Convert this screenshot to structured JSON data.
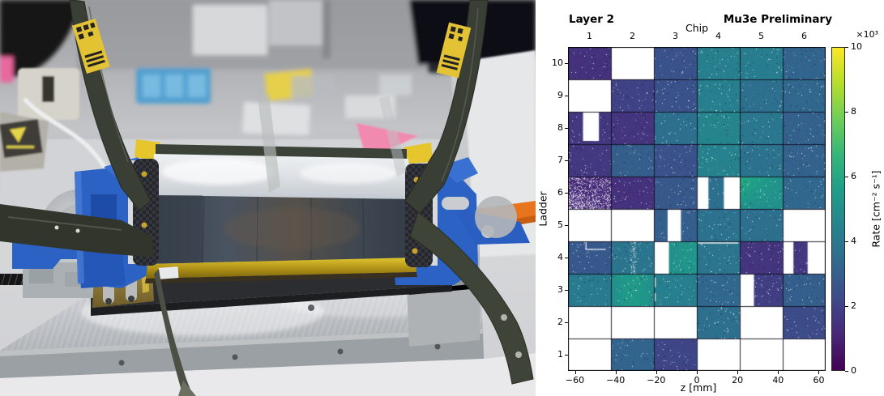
{
  "photo": {
    "alt": "Photograph of a Mu3e pixel-tracker ladder module (silver silicon faces with yellow kapton edges) clamped between blue 3D-printed holders on an aluminium assembly jig, with dark flex-print cables fanning out, in a lab",
    "colors": {
      "jig_blue": "#2c62c4",
      "kapton_yellow": "#d7b92a",
      "brass": "#a98f46",
      "aluminium": "#b9bcc0",
      "flex_olive": "#3a3f35",
      "label_yellow": "#e3c334",
      "sticky_pink": "#f289ae",
      "tool_orange": "#e8741e"
    }
  },
  "chart_data": {
    "type": "heatmap",
    "title_left": "Layer 2",
    "title_right": "Mu3e Preliminary",
    "x_top_label": "Chip",
    "x_top_ticks": [
      "1",
      "2",
      "3",
      "4",
      "5",
      "6"
    ],
    "x_bottom_label": "z [mm]",
    "x_bottom_ticks": [
      "−60",
      "−40",
      "−20",
      "0",
      "20",
      "40",
      "60"
    ],
    "x_bottom_tick_values": [
      -60,
      -40,
      -20,
      0,
      20,
      40,
      60
    ],
    "z_range_mm": [
      -63.4,
      63.4
    ],
    "y_label": "Ladder",
    "y_ticks": [
      "10",
      "9",
      "8",
      "7",
      "6",
      "5",
      "4",
      "3",
      "2",
      "1"
    ],
    "colorbar": {
      "label": "Rate [cm⁻² s⁻¹]",
      "scale": "×10³",
      "ticks": [
        0,
        2,
        4,
        6,
        8,
        10
      ],
      "colormap": "viridis",
      "range": [
        0,
        10
      ]
    },
    "value_unit": "10^3 cm^-2 s^-1",
    "ladders": [
      {
        "ladder": 10,
        "values": [
          1.3,
          null,
          2.3,
          3.9,
          3.8,
          2.9
        ]
      },
      {
        "ladder": 9,
        "values": [
          null,
          1.8,
          2.3,
          3.9,
          3.3,
          3.0
        ]
      },
      {
        "ladder": 8,
        "values": [
          1.5,
          1.4,
          3.3,
          4.1,
          3.6,
          2.8
        ]
      },
      {
        "ladder": 7,
        "values": [
          1.5,
          2.7,
          2.3,
          4.0,
          3.4,
          2.8
        ]
      },
      {
        "ladder": 6,
        "values": [
          1.1,
          1.3,
          2.5,
          3.3,
          4.5,
          3.0
        ]
      },
      {
        "ladder": 5,
        "values": [
          null,
          null,
          2.7,
          3.4,
          3.3,
          null
        ]
      },
      {
        "ladder": 4,
        "values": [
          2.5,
          3.5,
          4.3,
          3.5,
          1.4,
          1.5
        ]
      },
      {
        "ladder": 3,
        "values": [
          3.7,
          4.4,
          3.9,
          3.0,
          1.7,
          2.7
        ]
      },
      {
        "ladder": 2,
        "values": [
          null,
          null,
          null,
          3.3,
          null,
          2.1
        ]
      },
      {
        "ladder": 1,
        "values": [
          null,
          2.9,
          1.9,
          null,
          null,
          null
        ]
      }
    ],
    "white_patches": [
      {
        "ladder": 8,
        "chip": 1,
        "x0": 0.35,
        "x1": 0.72,
        "y0": 0.0,
        "y1": 0.9
      },
      {
        "ladder": 6,
        "chip": 4,
        "x0": 0.0,
        "x1": 0.27,
        "y0": 0.0,
        "y1": 1.0
      },
      {
        "ladder": 6,
        "chip": 4,
        "x0": 0.63,
        "x1": 1.0,
        "y0": 0.0,
        "y1": 1.0
      },
      {
        "ladder": 5,
        "chip": 3,
        "x0": 0.32,
        "x1": 0.63,
        "y0": 0.0,
        "y1": 1.0
      },
      {
        "ladder": 4,
        "chip": 3,
        "x0": 0.0,
        "x1": 0.35,
        "y0": 0.0,
        "y1": 1.0
      },
      {
        "ladder": 4,
        "chip": 6,
        "x0": 0.0,
        "x1": 0.25,
        "y0": 0.0,
        "y1": 1.0
      },
      {
        "ladder": 4,
        "chip": 6,
        "x0": 0.58,
        "x1": 1.0,
        "y0": 0.0,
        "y1": 1.0
      },
      {
        "ladder": 3,
        "chip": 5,
        "x0": 0.0,
        "x1": 0.33,
        "y0": 0.0,
        "y1": 1.0
      }
    ],
    "artifacts": [
      {
        "type": "noisy",
        "ladder": 6,
        "chip": 1
      },
      {
        "type": "smear",
        "ladder": 4,
        "chip": 2
      },
      {
        "type": "vline",
        "ladder": 4,
        "chip": 1,
        "x": 0.42,
        "y0": 0.03,
        "y1": 0.25
      },
      {
        "type": "hline",
        "ladder": 4,
        "chip": 1,
        "y": 0.25,
        "x0": 0.42,
        "x1": 0.88
      },
      {
        "type": "hline",
        "ladder": 4,
        "chip": 4,
        "y": 0.05,
        "x0": 0.03,
        "x1": 0.97
      },
      {
        "type": "vline",
        "ladder": 3,
        "chip": 3,
        "x": 0.03,
        "y0": 0.12,
        "y1": 0.42
      },
      {
        "type": "vline",
        "ladder": 3,
        "chip": 3,
        "x": 0.03,
        "y0": 0.6,
        "y1": 0.85
      }
    ],
    "hot_spots": [
      {
        "ladder": 6,
        "chip": 5,
        "corner": "top-left",
        "boost": 1.0
      },
      {
        "ladder": 4,
        "chip": 3,
        "side": "right",
        "boost": 0.5
      },
      {
        "ladder": 3,
        "chip": 2,
        "center": true,
        "boost": 0.5
      }
    ]
  }
}
